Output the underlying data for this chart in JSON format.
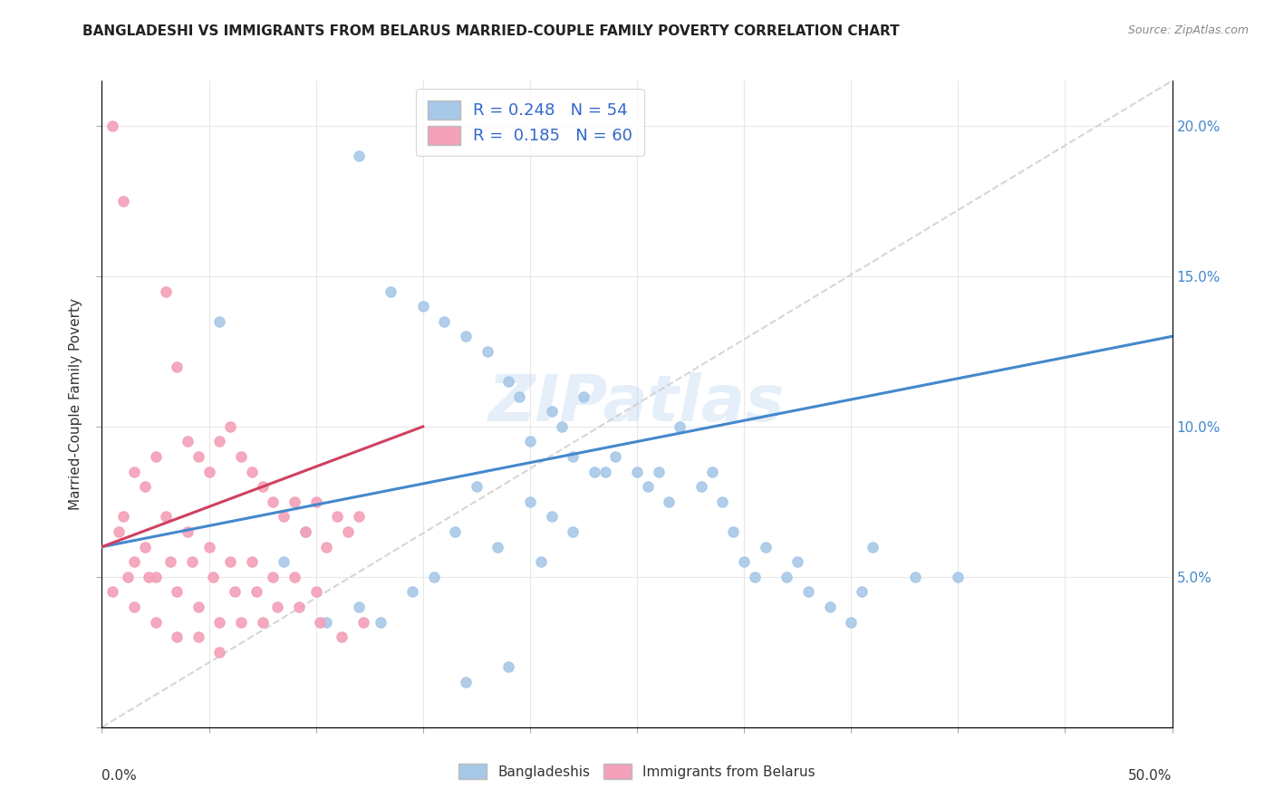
{
  "title": "BANGLADESHI VS IMMIGRANTS FROM BELARUS MARRIED-COUPLE FAMILY POVERTY CORRELATION CHART",
  "source": "Source: ZipAtlas.com",
  "ylabel": "Married-Couple Family Poverty",
  "xmin": 0.0,
  "xmax": 50.0,
  "ymin": 0.0,
  "ymax": 21.5,
  "yticks": [
    0.0,
    5.0,
    10.0,
    15.0,
    20.0
  ],
  "ytick_labels_right": [
    "",
    "5.0%",
    "10.0%",
    "15.0%",
    "20.0%"
  ],
  "blue_color": "#a8c8e8",
  "pink_color": "#f4a0b8",
  "blue_line_color": "#4488cc",
  "pink_line_color": "#d04060",
  "diagonal_color": "#cccccc",
  "R_blue": 0.248,
  "N_blue": 54,
  "R_pink": 0.185,
  "N_pink": 60,
  "legend_label_blue": "Bangladeshis",
  "legend_label_pink": "Immigrants from Belarus",
  "watermark": "ZIPatlas",
  "blue_line": [
    [
      0,
      50
    ],
    [
      6.0,
      13.0
    ]
  ],
  "pink_line": [
    [
      0,
      15
    ],
    [
      6.0,
      10.0
    ]
  ],
  "diag_line": [
    [
      0,
      50
    ],
    [
      0,
      21.5
    ]
  ],
  "blue_x": [
    5.5,
    12.0,
    13.5,
    15.0,
    16.0,
    17.0,
    18.0,
    19.0,
    19.5,
    20.0,
    21.0,
    21.5,
    22.0,
    22.5,
    23.0,
    24.0,
    25.0,
    25.5,
    26.0,
    27.0,
    28.0,
    28.5,
    29.0,
    30.0,
    30.5,
    31.0,
    32.0,
    33.0,
    34.0,
    35.0,
    36.0,
    38.0,
    40.0,
    21.0,
    22.0,
    20.0,
    18.5,
    17.5,
    16.5,
    15.5,
    14.5,
    13.0,
    12.0,
    10.5,
    9.5,
    8.5,
    20.5,
    23.5,
    26.5,
    29.5,
    32.5,
    35.5,
    17.0,
    19.0
  ],
  "blue_y": [
    13.5,
    19.0,
    14.5,
    14.0,
    13.5,
    13.0,
    12.5,
    11.5,
    11.0,
    9.5,
    10.5,
    10.0,
    9.0,
    11.0,
    8.5,
    9.0,
    8.5,
    8.0,
    8.5,
    10.0,
    8.0,
    8.5,
    7.5,
    5.5,
    5.0,
    6.0,
    5.0,
    4.5,
    4.0,
    3.5,
    6.0,
    5.0,
    5.0,
    7.0,
    6.5,
    7.5,
    6.0,
    8.0,
    6.5,
    5.0,
    4.5,
    3.5,
    4.0,
    3.5,
    6.5,
    5.5,
    5.5,
    8.5,
    7.5,
    6.5,
    5.5,
    4.5,
    1.5,
    2.0
  ],
  "pink_x": [
    0.5,
    1.0,
    1.5,
    2.0,
    2.5,
    3.0,
    3.5,
    4.0,
    4.5,
    5.0,
    5.5,
    6.0,
    6.5,
    7.0,
    7.5,
    8.0,
    8.5,
    9.0,
    9.5,
    10.0,
    10.5,
    11.0,
    11.5,
    12.0,
    1.0,
    2.0,
    3.0,
    4.0,
    5.0,
    6.0,
    7.0,
    8.0,
    9.0,
    10.0,
    0.8,
    1.5,
    2.5,
    3.5,
    4.5,
    5.5,
    6.5,
    7.5,
    1.2,
    2.2,
    3.2,
    4.2,
    5.2,
    6.2,
    7.2,
    8.2,
    9.2,
    10.2,
    11.2,
    12.2,
    0.5,
    1.5,
    2.5,
    3.5,
    4.5,
    5.5
  ],
  "pink_y": [
    20.0,
    17.5,
    8.5,
    8.0,
    9.0,
    14.5,
    12.0,
    9.5,
    9.0,
    8.5,
    9.5,
    10.0,
    9.0,
    8.5,
    8.0,
    7.5,
    7.0,
    7.5,
    6.5,
    7.5,
    6.0,
    7.0,
    6.5,
    7.0,
    7.0,
    6.0,
    7.0,
    6.5,
    6.0,
    5.5,
    5.5,
    5.0,
    5.0,
    4.5,
    6.5,
    5.5,
    5.0,
    4.5,
    4.0,
    3.5,
    3.5,
    3.5,
    5.0,
    5.0,
    5.5,
    5.5,
    5.0,
    4.5,
    4.5,
    4.0,
    4.0,
    3.5,
    3.0,
    3.5,
    4.5,
    4.0,
    3.5,
    3.0,
    3.0,
    2.5
  ]
}
